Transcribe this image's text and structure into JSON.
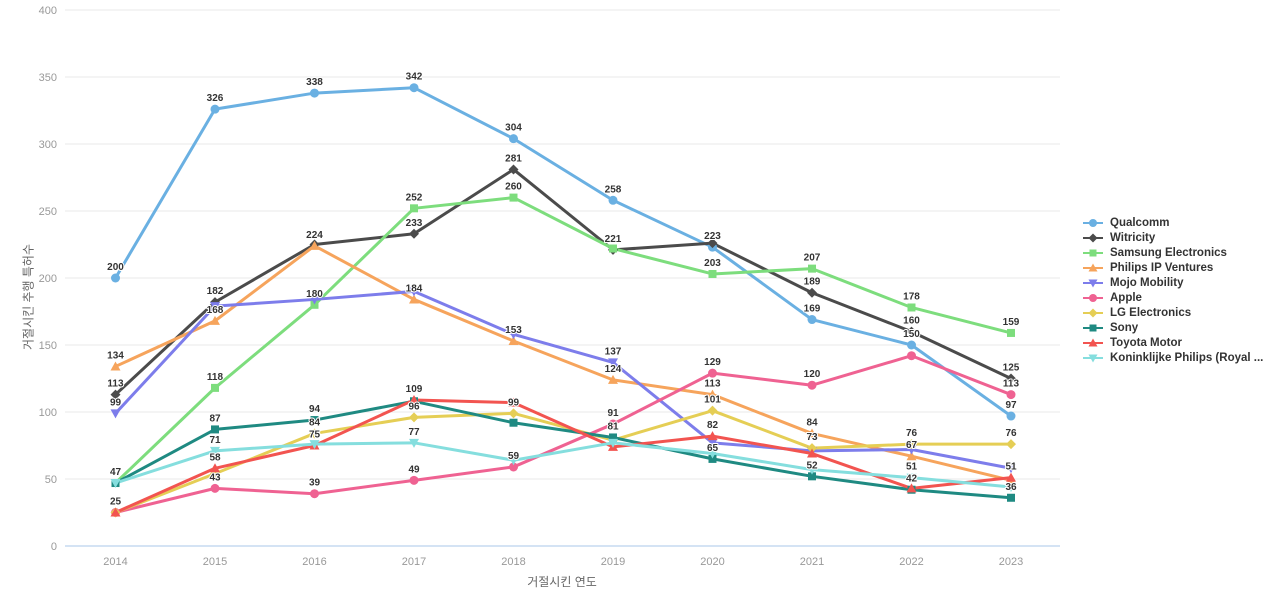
{
  "chart_data": {
    "type": "line",
    "title": "",
    "xlabel": "거절시킨 연도",
    "ylabel": "거절시킨 추행 특허수",
    "x": [
      2014,
      2015,
      2016,
      2017,
      2018,
      2019,
      2020,
      2021,
      2022,
      2023
    ],
    "ylim": [
      0,
      400
    ],
    "ytick_step": 50,
    "grid": true,
    "legend_position": "right",
    "series": [
      {
        "name": "Qualcomm",
        "color": "#6ab0e2",
        "marker": "circle",
        "values": [
          200,
          326,
          338,
          342,
          304,
          258,
          223,
          169,
          150,
          97
        ],
        "show_label": [
          1,
          1,
          1,
          1,
          1,
          1,
          1,
          1,
          1,
          1
        ]
      },
      {
        "name": "Witricity",
        "color": "#4b4b4b",
        "marker": "diamond",
        "values": [
          113,
          182,
          225,
          233,
          281,
          221,
          226,
          189,
          160,
          125
        ],
        "show_label": [
          1,
          1,
          0,
          1,
          1,
          1,
          0,
          1,
          1,
          1
        ]
      },
      {
        "name": "Samsung Electronics",
        "color": "#7ddd7d",
        "marker": "square",
        "values": [
          47,
          118,
          180,
          252,
          260,
          222,
          203,
          207,
          178,
          159
        ],
        "show_label": [
          1,
          1,
          1,
          1,
          1,
          0,
          1,
          1,
          1,
          1
        ]
      },
      {
        "name": "Philips IP Ventures",
        "color": "#f6a45c",
        "marker": "triangle",
        "values": [
          134,
          168,
          224,
          184,
          153,
          124,
          113,
          84,
          67,
          49
        ],
        "show_label": [
          1,
          1,
          1,
          1,
          1,
          1,
          1,
          1,
          1,
          0
        ]
      },
      {
        "name": "Mojo Mobility",
        "color": "#7d7deb",
        "marker": "triangle-down",
        "values": [
          99,
          179,
          184,
          190,
          158,
          137,
          77,
          71,
          72,
          58
        ],
        "show_label": [
          1,
          0,
          0,
          0,
          0,
          1,
          0,
          0,
          0,
          0
        ]
      },
      {
        "name": "Apple",
        "color": "#ef6292",
        "marker": "circle",
        "values": [
          25,
          43,
          39,
          49,
          59,
          91,
          129,
          120,
          142,
          113
        ],
        "show_label": [
          0,
          1,
          1,
          1,
          1,
          1,
          1,
          1,
          0,
          1
        ]
      },
      {
        "name": "LG Electronics",
        "color": "#e5ce55",
        "marker": "diamond",
        "values": [
          25,
          54,
          84,
          96,
          99,
          79,
          101,
          73,
          76,
          76
        ],
        "show_label": [
          0,
          0,
          1,
          1,
          1,
          0,
          1,
          1,
          1,
          1
        ]
      },
      {
        "name": "Sony",
        "color": "#1f8a82",
        "marker": "square",
        "values": [
          47,
          87,
          94,
          108,
          92,
          81,
          65,
          52,
          42,
          36
        ],
        "show_label": [
          0,
          1,
          1,
          0,
          0,
          1,
          1,
          1,
          1,
          1
        ]
      },
      {
        "name": "Toyota Motor",
        "color": "#f25450",
        "marker": "triangle",
        "values": [
          25,
          58,
          75,
          109,
          107,
          74,
          82,
          69,
          43,
          51
        ],
        "show_label": [
          1,
          1,
          1,
          1,
          0,
          0,
          1,
          0,
          0,
          1
        ]
      },
      {
        "name": "Koninklijke Philips (Royal ...",
        "color": "#85dede",
        "marker": "triangle-down",
        "values": [
          47,
          71,
          76,
          77,
          64,
          77,
          69,
          57,
          51,
          44
        ],
        "show_label": [
          0,
          1,
          0,
          1,
          0,
          0,
          0,
          0,
          1,
          0
        ]
      }
    ]
  },
  "colors": {
    "background": "#ffffff",
    "grid": "#e8e8e8",
    "axis_line": "#a9c7e8",
    "tick_text": "#999999",
    "axis_title_text": "#666666",
    "data_label_text": "#333333",
    "legend_text": "#333333"
  }
}
